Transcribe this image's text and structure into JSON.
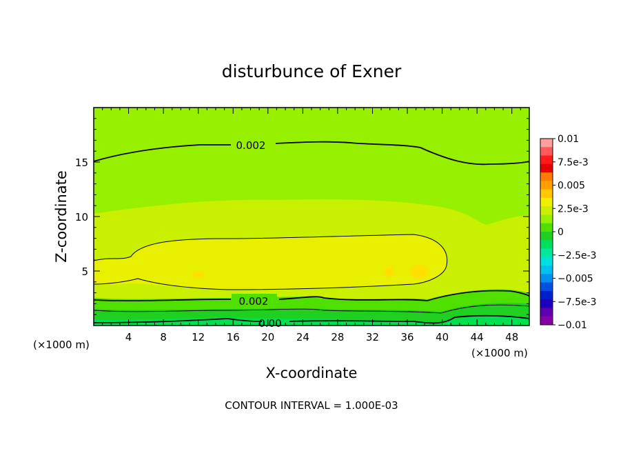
{
  "chart_data": {
    "type": "heatmap",
    "title": "disturbunce of Exner",
    "xlabel": "X-coordinate",
    "ylabel": "Z-coordinate",
    "x_unit_left": "(×1000 m)",
    "x_unit_right": "(×1000 m)",
    "footer": "CONTOUR INTERVAL = 1.000E-03",
    "xlim": [
      0,
      50
    ],
    "ylim": [
      0,
      20
    ],
    "x_ticks": [
      "4",
      "8",
      "12",
      "16",
      "20",
      "24",
      "28",
      "32",
      "36",
      "40",
      "44",
      "48"
    ],
    "x_tick_values": [
      4,
      8,
      12,
      16,
      20,
      24,
      28,
      32,
      36,
      40,
      44,
      48
    ],
    "y_ticks": [
      "5",
      "10",
      "15"
    ],
    "y_tick_values": [
      5,
      10,
      15
    ],
    "contour_labels": [
      "0.002",
      "0.002",
      "0.00"
    ],
    "colorbar": {
      "labels": [
        "0.01",
        "7.5e-3",
        "0.005",
        "2.5e-3",
        "0",
        "−2.5e-3",
        "−0.005",
        "−7.5e-3",
        "−0.01"
      ],
      "colors": [
        "#ff9e9e",
        "#ff5a5a",
        "#ff1a1a",
        "#e60000",
        "#ff7a00",
        "#ffa000",
        "#ffc800",
        "#f0f000",
        "#c8f000",
        "#96f000",
        "#50e000",
        "#20d020",
        "#00e060",
        "#00e8a0",
        "#00e0e0",
        "#00c0f0",
        "#0090f0",
        "#0050e0",
        "#0020d0",
        "#2000c0",
        "#6000b0",
        "#8a00a8"
      ]
    },
    "field_colors": {
      "upper": "#96f000",
      "mid_band": "#c8f000",
      "core": "#e8f000",
      "hot_spot": "#ffe000",
      "low_1": "#50e000",
      "low_2": "#20d020",
      "low_3": "#00e050"
    }
  }
}
